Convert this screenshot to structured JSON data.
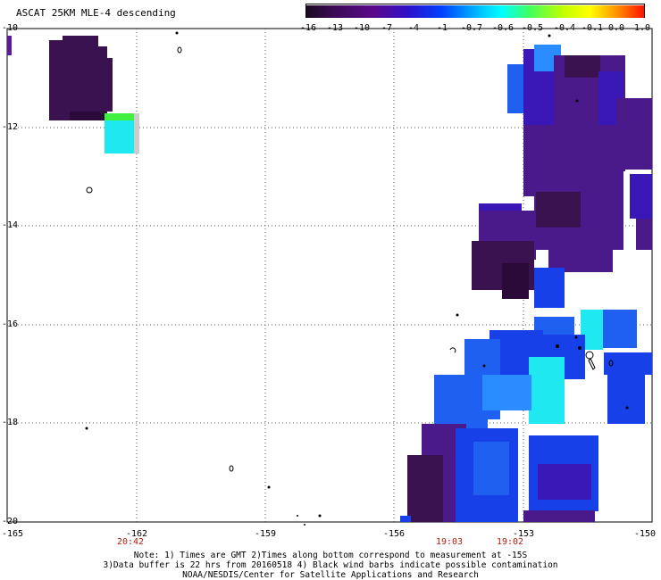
{
  "title": "ASCAT 25KM MLE-4 descending",
  "colorbar": {
    "ticks": [
      "-16",
      "-13",
      "-10",
      "-7",
      "-4",
      "-1",
      "-0.7",
      "-0.6",
      "-0.5",
      "-0.4",
      "-0.1",
      "0.0",
      "1.0"
    ],
    "colors": [
      "#1a0a20",
      "#3b0a55",
      "#5a0a8a",
      "#3010c8",
      "#0030ff",
      "#0080ff",
      "#00c8ff",
      "#00ffff",
      "#40ff60",
      "#a0ff00",
      "#ffff00",
      "#ff9000",
      "#ff2000"
    ]
  },
  "axes": {
    "lat_labels": [
      "-10",
      "-12",
      "-14",
      "-16",
      "-18",
      "-20"
    ],
    "lon_labels": [
      "-165",
      "-162",
      "-159",
      "-156",
      "-153",
      "-150"
    ],
    "time_labels": [
      "20:42",
      "19:03",
      "19:02"
    ]
  },
  "notes": [
    "Note: 1) Times are GMT 2)Times along bottom correspond to measurement at -15S",
    "3)Data buffer is 22 hrs from 20160518 4) Black wind barbs indicate possible contamination",
    "NOAA/NESDIS/Center for Satellite Applications and Research"
  ],
  "swath_colors": {
    "deep_purple": "#3a1250",
    "purple": "#4a1a8a",
    "indigo": "#3a18b8",
    "blue": "#1840e8",
    "mid_blue": "#2060f0",
    "light_blue": "#2a8cff",
    "cyan": "#20e8f0",
    "green": "#40f040",
    "gray": "#cccccc"
  }
}
